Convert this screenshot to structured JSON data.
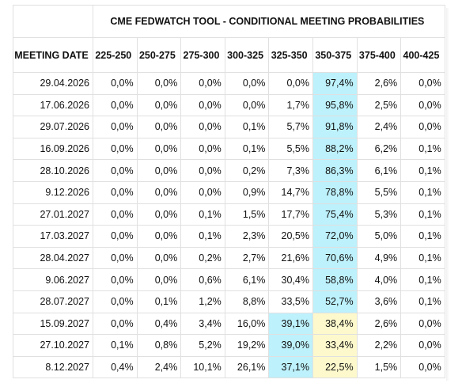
{
  "title": "CME FEDWATCH TOOL - CONDITIONAL MEETING PROBABILITIES",
  "header": {
    "date_label": "MEETING DATE",
    "ranges": [
      "225-250",
      "250-275",
      "275-300",
      "300-325",
      "325-350",
      "350-375",
      "375-400",
      "400-425"
    ]
  },
  "colors": {
    "highest_probability": "#bdf1fb",
    "second_probability": "#fdf9cc"
  },
  "rows": [
    {
      "date": "29.04.2026",
      "values": [
        "0,0%",
        "0,0%",
        "0,0%",
        "0,0%",
        "0,0%",
        "97,4%",
        "2,6%",
        "0,0%"
      ],
      "highlight": [
        0,
        0,
        0,
        0,
        0,
        1,
        0,
        0
      ]
    },
    {
      "date": "17.06.2026",
      "values": [
        "0,0%",
        "0,0%",
        "0,0%",
        "0,0%",
        "1,7%",
        "95,8%",
        "2,5%",
        "0,0%"
      ],
      "highlight": [
        0,
        0,
        0,
        0,
        0,
        1,
        0,
        0
      ]
    },
    {
      "date": "29.07.2026",
      "values": [
        "0,0%",
        "0,0%",
        "0,0%",
        "0,1%",
        "5,7%",
        "91,8%",
        "2,4%",
        "0,0%"
      ],
      "highlight": [
        0,
        0,
        0,
        0,
        0,
        1,
        0,
        0
      ]
    },
    {
      "date": "16.09.2026",
      "values": [
        "0,0%",
        "0,0%",
        "0,0%",
        "0,1%",
        "5,5%",
        "88,2%",
        "6,2%",
        "0,1%"
      ],
      "highlight": [
        0,
        0,
        0,
        0,
        0,
        1,
        0,
        0
      ]
    },
    {
      "date": "28.10.2026",
      "values": [
        "0,0%",
        "0,0%",
        "0,0%",
        "0,2%",
        "7,3%",
        "86,3%",
        "6,1%",
        "0,1%"
      ],
      "highlight": [
        0,
        0,
        0,
        0,
        0,
        1,
        0,
        0
      ]
    },
    {
      "date": "9.12.2026",
      "values": [
        "0,0%",
        "0,0%",
        "0,0%",
        "0,9%",
        "14,7%",
        "78,8%",
        "5,5%",
        "0,1%"
      ],
      "highlight": [
        0,
        0,
        0,
        0,
        0,
        1,
        0,
        0
      ]
    },
    {
      "date": "27.01.2027",
      "values": [
        "0,0%",
        "0,0%",
        "0,1%",
        "1,5%",
        "17,7%",
        "75,4%",
        "5,3%",
        "0,1%"
      ],
      "highlight": [
        0,
        0,
        0,
        0,
        0,
        1,
        0,
        0
      ]
    },
    {
      "date": "17.03.2027",
      "values": [
        "0,0%",
        "0,0%",
        "0,1%",
        "2,3%",
        "20,5%",
        "72,0%",
        "5,0%",
        "0,1%"
      ],
      "highlight": [
        0,
        0,
        0,
        0,
        0,
        1,
        0,
        0
      ]
    },
    {
      "date": "28.04.2027",
      "values": [
        "0,0%",
        "0,0%",
        "0,2%",
        "2,7%",
        "21,6%",
        "70,6%",
        "4,9%",
        "0,1%"
      ],
      "highlight": [
        0,
        0,
        0,
        0,
        0,
        1,
        0,
        0
      ]
    },
    {
      "date": "9.06.2027",
      "values": [
        "0,0%",
        "0,0%",
        "0,6%",
        "6,1%",
        "30,4%",
        "58,8%",
        "4,0%",
        "0,1%"
      ],
      "highlight": [
        0,
        0,
        0,
        0,
        0,
        1,
        0,
        0
      ]
    },
    {
      "date": "28.07.2027",
      "values": [
        "0,0%",
        "0,1%",
        "1,2%",
        "8,8%",
        "33,5%",
        "52,7%",
        "3,6%",
        "0,1%"
      ],
      "highlight": [
        0,
        0,
        0,
        0,
        0,
        1,
        0,
        0
      ]
    },
    {
      "date": "15.09.2027",
      "values": [
        "0,0%",
        "0,4%",
        "3,4%",
        "16,0%",
        "39,1%",
        "38,4%",
        "2,6%",
        "0,0%"
      ],
      "highlight": [
        0,
        0,
        0,
        0,
        1,
        2,
        0,
        0
      ]
    },
    {
      "date": "27.10.2027",
      "values": [
        "0,1%",
        "0,8%",
        "5,2%",
        "19,2%",
        "39,0%",
        "33,4%",
        "2,2%",
        "0,0%"
      ],
      "highlight": [
        0,
        0,
        0,
        0,
        1,
        2,
        0,
        0
      ]
    },
    {
      "date": "8.12.2027",
      "values": [
        "0,4%",
        "2,4%",
        "10,1%",
        "26,1%",
        "37,1%",
        "22,5%",
        "1,5%",
        "0,0%"
      ],
      "highlight": [
        0,
        0,
        0,
        0,
        1,
        2,
        0,
        0
      ]
    }
  ]
}
